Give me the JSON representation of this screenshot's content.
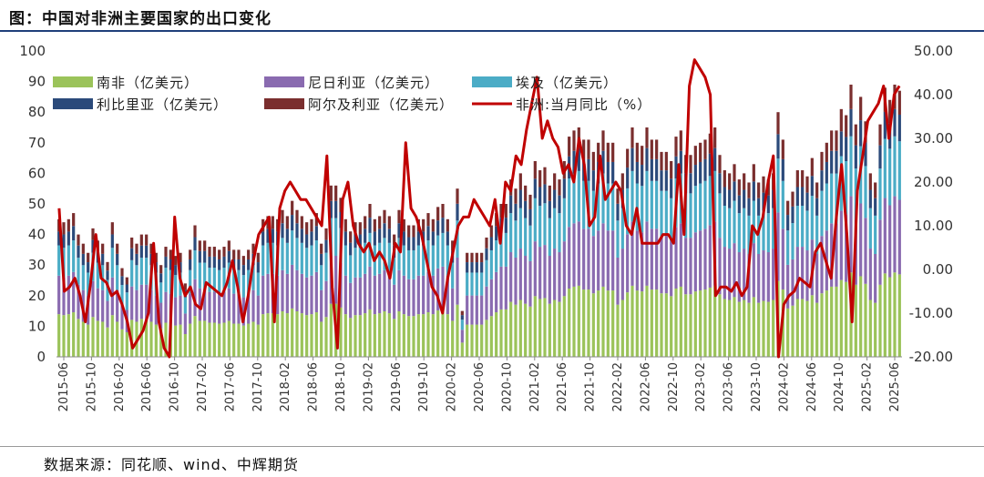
{
  "page": {
    "title": "图：中国对非洲主要国家的出口变化",
    "source": "数据来源：同花顺、wind、中辉期货"
  },
  "colors": {
    "south_africa": "#9bc35a",
    "nigeria": "#8a6bb0",
    "egypt": "#4bacc6",
    "libya": "#2b4a7a",
    "algeria": "#7a2e2e",
    "yoy_line": "#c00000"
  },
  "chart_data": {
    "type": "bar",
    "stacked": true,
    "x_ticks": [
      "2015-06",
      "2015-10",
      "2016-02",
      "2016-06",
      "2016-10",
      "2017-02",
      "2017-06",
      "2017-10",
      "2018-02",
      "2018-06",
      "2018-10",
      "2019-02",
      "2019-06",
      "2019-10",
      "2020-02",
      "2020-06",
      "2020-10",
      "2021-02",
      "2021-06",
      "2021-10",
      "2022-02",
      "2022-06",
      "2022-10",
      "2023-02",
      "2023-06",
      "2023-10",
      "2024-02",
      "2024-06",
      "2024-10",
      "2025-02",
      "2025-06"
    ],
    "y_left": {
      "min": 0,
      "max": 100,
      "ticks": [
        "0",
        "10",
        "20",
        "30",
        "40",
        "50",
        "60",
        "70",
        "80",
        "90",
        "100"
      ]
    },
    "y_right": {
      "min": -20,
      "max": 50,
      "ticks": [
        "-20.00",
        "-10.00",
        "0.00",
        "10.00",
        "20.00",
        "30.00",
        "40.00",
        "50.00"
      ]
    },
    "legend": [
      "南非（亿美元）",
      "尼日利亚（亿美元）",
      "埃及（亿美元）",
      "利比里亚（亿美元）",
      "阿尔及利亚（亿美元）",
      "非洲:当月同比（%）"
    ],
    "legend_placement": "top-left",
    "grid": false,
    "bar_totals": [
      45,
      44,
      45,
      47,
      40,
      37,
      34,
      42,
      38,
      37,
      31,
      44,
      37,
      29,
      26,
      39,
      37,
      40,
      40,
      37,
      34,
      30,
      36,
      35,
      33,
      34,
      24,
      35,
      43,
      38,
      38,
      36,
      36,
      35,
      36,
      38,
      35,
      35,
      33,
      35,
      37,
      34,
      45,
      46,
      46,
      45,
      48,
      46,
      51,
      48,
      46,
      44,
      45,
      47,
      37,
      42,
      56,
      56,
      52,
      45,
      41,
      44,
      44,
      46,
      50,
      45,
      46,
      48,
      46,
      40,
      48,
      45,
      43,
      43,
      45,
      45,
      47,
      45,
      49,
      50,
      45,
      38,
      55,
      15,
      34,
      34,
      34,
      34,
      39,
      43,
      47,
      50,
      50,
      58,
      55,
      60,
      56,
      53,
      64,
      61,
      62,
      56,
      60,
      58,
      64,
      72,
      74,
      75,
      71,
      71,
      67,
      70,
      74,
      70,
      70,
      55,
      60,
      68,
      75,
      70,
      69,
      75,
      71,
      71,
      67,
      67,
      64,
      72,
      74,
      66,
      66,
      69,
      70,
      71,
      73,
      75,
      66,
      61,
      60,
      63,
      58,
      60,
      57,
      63,
      57,
      59,
      58,
      60,
      80,
      71,
      51,
      54,
      61,
      61,
      59,
      65,
      57,
      67,
      70,
      74,
      74,
      81,
      79,
      89,
      76,
      85,
      77,
      60,
      57,
      76,
      88,
      84,
      89,
      87
    ],
    "yoy_values": [
      14,
      -5,
      -4,
      -2,
      -6,
      -12,
      -3,
      8,
      -2,
      -3,
      -6,
      -5,
      -8,
      -12,
      -18,
      -16,
      -14,
      -10,
      6,
      -12,
      -18,
      -20,
      12,
      -2,
      -6,
      -4,
      -8,
      -9,
      -3,
      -4,
      -5,
      -6,
      -3,
      2,
      -4,
      -12,
      -6,
      2,
      8,
      10,
      12,
      -12,
      14,
      18,
      20,
      18,
      16,
      16,
      14,
      12,
      10,
      26,
      -4,
      -18,
      16,
      20,
      10,
      6,
      4,
      6,
      2,
      4,
      2,
      -2,
      6,
      4,
      29,
      14,
      12,
      8,
      2,
      -4,
      -6,
      -10,
      -2,
      4,
      10,
      12,
      12,
      16,
      14,
      12,
      10,
      16,
      6,
      20,
      18,
      26,
      24,
      32,
      38,
      44,
      30,
      34,
      30,
      28,
      22,
      24,
      20,
      30,
      24,
      10,
      12,
      26,
      16,
      18,
      20,
      18,
      10,
      8,
      14,
      6,
      6,
      6,
      6,
      8,
      8,
      6,
      24,
      8,
      42,
      48,
      46,
      44,
      40,
      -6,
      -4,
      -4,
      -5,
      -3,
      -6,
      -4,
      10,
      8,
      12,
      20,
      26,
      -22,
      -8,
      -6,
      -5,
      -2,
      -3,
      -4,
      4,
      6,
      2,
      -2,
      12,
      24,
      8,
      -12,
      18,
      26,
      34,
      36,
      38,
      42,
      30,
      40,
      42
    ],
    "annotations": []
  },
  "legend_labels": {
    "south_africa": "南非（亿美元）",
    "nigeria": "尼日利亚（亿美元）",
    "egypt": "埃及（亿美元）",
    "libya": "利比里亚（亿美元）",
    "algeria": "阿尔及利亚（亿美元）",
    "yoy": "非洲:当月同比（%）"
  }
}
